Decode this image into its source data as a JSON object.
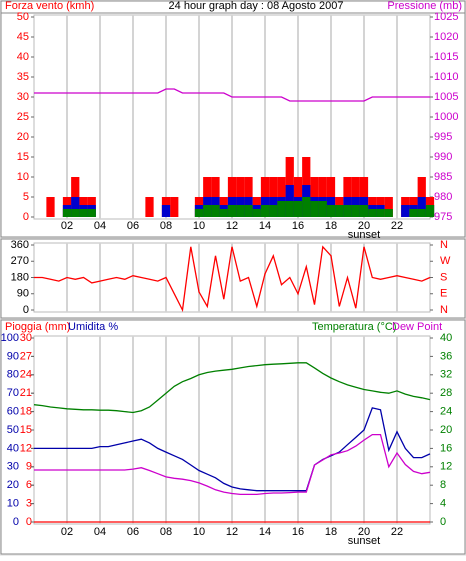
{
  "chart_data": [
    {
      "type": "bar",
      "title": "24 hour graph day : 08 Agosto 2007",
      "ylabel": "Forza vento (kmh)",
      "y2label": "Pressione (mb)",
      "x": [
        0,
        0.5,
        1,
        1.5,
        2,
        2.5,
        3,
        3.5,
        4,
        4.5,
        5,
        5.5,
        6,
        6.5,
        7,
        7.5,
        8,
        8.5,
        9,
        9.5,
        10,
        10.5,
        11,
        11.5,
        12,
        12.5,
        13,
        13.5,
        14,
        14.5,
        15,
        15.5,
        16,
        16.5,
        17,
        17.5,
        18,
        18.5,
        19,
        19.5,
        20,
        20.5,
        21,
        21.5,
        22,
        22.5,
        23,
        23.5,
        24
      ],
      "xlim": [
        0,
        24
      ],
      "xticks": [
        {
          "value": 2,
          "label": "02"
        },
        {
          "value": 4,
          "label": "04"
        },
        {
          "value": 6,
          "label": "06"
        },
        {
          "value": 8,
          "label": "08"
        },
        {
          "value": 10,
          "label": "10"
        },
        {
          "value": 12,
          "label": "12"
        },
        {
          "value": 14,
          "label": "14"
        },
        {
          "value": 16,
          "label": "16"
        },
        {
          "value": 18,
          "label": "18"
        },
        {
          "value": 20,
          "label": "20"
        },
        {
          "value": 22,
          "label": "22"
        }
      ],
      "ylim": [
        0,
        50
      ],
      "yticks": [
        0,
        5,
        10,
        15,
        20,
        25,
        30,
        35,
        40,
        45,
        50
      ],
      "y2lim": [
        975,
        1025
      ],
      "y2ticks": [
        975,
        980,
        985,
        990,
        995,
        1000,
        1005,
        1010,
        1015,
        1020,
        1025
      ],
      "annotations": [
        {
          "text": "sunset",
          "x": 20
        }
      ],
      "grid": true,
      "series": [
        {
          "color": "#ff0000",
          "values": [
            0,
            0,
            5,
            0,
            5,
            10,
            5,
            5,
            0,
            0,
            0,
            0,
            0,
            0,
            5,
            0,
            5,
            5,
            0,
            0,
            5,
            10,
            10,
            5,
            10,
            10,
            10,
            5,
            10,
            10,
            10,
            15,
            10,
            15,
            10,
            10,
            10,
            5,
            10,
            10,
            10,
            5,
            5,
            5,
            0,
            5,
            5,
            10,
            5
          ]
        },
        {
          "color": "#0000cc",
          "values": [
            0,
            0,
            0,
            0,
            3,
            5,
            3,
            3,
            0,
            0,
            0,
            0,
            0,
            0,
            0,
            0,
            3,
            0,
            0,
            0,
            3,
            5,
            5,
            3,
            5,
            5,
            5,
            3,
            5,
            5,
            5,
            8,
            5,
            8,
            5,
            5,
            5,
            3,
            5,
            5,
            5,
            3,
            3,
            0,
            0,
            3,
            3,
            5,
            3
          ]
        },
        {
          "color": "#008000",
          "values": [
            0,
            0,
            0,
            0,
            2,
            2,
            2,
            2,
            0,
            0,
            0,
            0,
            0,
            0,
            0,
            0,
            0,
            0,
            0,
            0,
            2,
            3,
            3,
            2,
            3,
            3,
            3,
            2,
            3,
            3,
            4,
            4,
            4,
            5,
            4,
            4,
            3,
            3,
            3,
            3,
            3,
            2,
            2,
            2,
            0,
            0,
            2,
            2,
            3
          ]
        },
        {
          "color": "#cc00cc",
          "type": "line",
          "axis": "y2",
          "values": [
            1006,
            1006,
            1006,
            1006,
            1006,
            1006,
            1006,
            1006,
            1006,
            1006,
            1006,
            1006,
            1006,
            1006,
            1006,
            1006,
            1007,
            1007,
            1006,
            1006,
            1006,
            1006,
            1006,
            1006,
            1005,
            1005,
            1005,
            1005,
            1005,
            1005,
            1005,
            1004,
            1004,
            1004,
            1004,
            1004,
            1004,
            1004,
            1004,
            1004,
            1004,
            1005,
            1005,
            1005,
            1005,
            1005,
            1005,
            1005,
            1005
          ]
        }
      ]
    },
    {
      "type": "line",
      "x": [
        0,
        0.5,
        1,
        1.5,
        2,
        2.5,
        3,
        3.5,
        4,
        4.5,
        5,
        5.5,
        6,
        6.5,
        7,
        7.5,
        8,
        8.5,
        9,
        9.5,
        10,
        10.5,
        11,
        11.5,
        12,
        12.5,
        13,
        13.5,
        14,
        14.5,
        15,
        15.5,
        16,
        16.5,
        17,
        17.5,
        18,
        18.5,
        19,
        19.5,
        20,
        20.5,
        21,
        21.5,
        22,
        22.5,
        23,
        23.5,
        24
      ],
      "xlim": [
        0,
        24
      ],
      "ylim": [
        0,
        360
      ],
      "yticks": [
        0,
        90,
        180,
        270,
        360
      ],
      "y2ticks": [
        {
          "value": 0,
          "label": "N"
        },
        {
          "value": 90,
          "label": "E"
        },
        {
          "value": 180,
          "label": "S"
        },
        {
          "value": 270,
          "label": "W"
        },
        {
          "value": 360,
          "label": "N"
        }
      ],
      "xticks": [
        2,
        4,
        6,
        8,
        10,
        12,
        14,
        16,
        18,
        20,
        22
      ],
      "grid": true,
      "series": [
        {
          "color": "#ff0000",
          "values": [
            180,
            180,
            170,
            160,
            180,
            170,
            180,
            150,
            160,
            170,
            180,
            170,
            190,
            180,
            170,
            160,
            180,
            90,
            0,
            350,
            100,
            20,
            300,
            60,
            350,
            160,
            180,
            20,
            200,
            300,
            140,
            180,
            90,
            240,
            30,
            350,
            300,
            20,
            180,
            10,
            350,
            180,
            170,
            180,
            190,
            180,
            170,
            160,
            180
          ]
        }
      ]
    },
    {
      "type": "line",
      "x": [
        0,
        0.5,
        1,
        1.5,
        2,
        2.5,
        3,
        3.5,
        4,
        4.5,
        5,
        5.5,
        6,
        6.5,
        7,
        7.5,
        8,
        8.5,
        9,
        9.5,
        10,
        10.5,
        11,
        11.5,
        12,
        12.5,
        13,
        13.5,
        14,
        14.5,
        15,
        15.5,
        16,
        16.5,
        17,
        17.5,
        18,
        18.5,
        19,
        19.5,
        20,
        20.5,
        21,
        21.5,
        22,
        22.5,
        23,
        23.5,
        24
      ],
      "xlim": [
        0,
        24
      ],
      "xticks": [
        {
          "value": 2,
          "label": "02"
        },
        {
          "value": 4,
          "label": "04"
        },
        {
          "value": 6,
          "label": "06"
        },
        {
          "value": 8,
          "label": "08"
        },
        {
          "value": 10,
          "label": "10"
        },
        {
          "value": 12,
          "label": "12"
        },
        {
          "value": 14,
          "label": "14"
        },
        {
          "value": 16,
          "label": "16"
        },
        {
          "value": 18,
          "label": "18"
        },
        {
          "value": 20,
          "label": "20"
        },
        {
          "value": 22,
          "label": "22"
        }
      ],
      "ylim": [
        0,
        100
      ],
      "yticks": [
        0,
        10,
        20,
        30,
        40,
        50,
        60,
        70,
        80,
        90,
        100
      ],
      "y3lim": [
        0,
        30
      ],
      "y3ticks": [
        0,
        3,
        6,
        9,
        12,
        15,
        18,
        21,
        24,
        27,
        30
      ],
      "y2lim": [
        0,
        40
      ],
      "y2ticks": [
        0,
        4,
        8,
        12,
        16,
        20,
        24,
        28,
        32,
        36,
        40
      ],
      "annotations": [
        {
          "text": "sunset",
          "x": 20
        }
      ],
      "grid": true,
      "series": [
        {
          "name": "Pioggia (mm)",
          "color": "#ff0000",
          "axis": "y3",
          "values": [
            0,
            0,
            0,
            0,
            0,
            0,
            0,
            0,
            0,
            0,
            0,
            0,
            0,
            0,
            0,
            0,
            0,
            0,
            0,
            0,
            0,
            0,
            0,
            0,
            0,
            0,
            0,
            0,
            0,
            0,
            0,
            0,
            0,
            0,
            0,
            0,
            0,
            0,
            0,
            0,
            0,
            0,
            0,
            0,
            0,
            0,
            0,
            0,
            0
          ]
        },
        {
          "name": "Umidita %",
          "color": "#0000aa",
          "values": [
            40,
            40,
            40,
            40,
            40,
            40,
            40,
            40,
            41,
            41,
            42,
            43,
            44,
            45,
            43,
            40,
            38,
            36,
            34,
            31,
            28,
            26,
            24,
            21,
            19,
            18,
            17.5,
            17,
            17,
            17,
            17,
            17,
            17,
            17,
            31,
            34,
            36,
            38,
            42,
            46,
            50,
            62,
            61,
            39,
            49,
            40,
            35,
            35,
            37
          ]
        },
        {
          "name": "Temperatura (°C)",
          "color": "#008000",
          "axis": "y2",
          "values": [
            25.5,
            25.3,
            25,
            24.8,
            24.6,
            24.5,
            24.4,
            24.4,
            24.3,
            24.3,
            24.2,
            24,
            23.8,
            24.2,
            25,
            26.5,
            28,
            29.5,
            30.5,
            31.2,
            32,
            32.5,
            32.8,
            33,
            33.2,
            33.5,
            33.8,
            34,
            34.2,
            34.3,
            34.4,
            34.5,
            34.6,
            34.6,
            33.5,
            32.3,
            31.3,
            30.5,
            29.8,
            29.3,
            28.8,
            28.5,
            28.2,
            28,
            28.5,
            27.8,
            27.3,
            27,
            26.6
          ]
        },
        {
          "name": "Dew Point",
          "color": "#cc00cc",
          "axis": "y2",
          "values": [
            11.3,
            11.3,
            11.3,
            11.3,
            11.3,
            11.3,
            11.3,
            11.3,
            11.3,
            11.3,
            11.3,
            11.3,
            11.5,
            11.8,
            11.2,
            10.5,
            9.8,
            9.5,
            9.3,
            9,
            8.5,
            7.8,
            7,
            6.5,
            6.2,
            6,
            6,
            6,
            6.2,
            6.3,
            6.3,
            6.4,
            6.5,
            6.5,
            12.4,
            13.5,
            14.6,
            15,
            15.5,
            16.5,
            17.8,
            19,
            19,
            12,
            15,
            12.5,
            11,
            10.5,
            10.8
          ]
        }
      ]
    }
  ]
}
